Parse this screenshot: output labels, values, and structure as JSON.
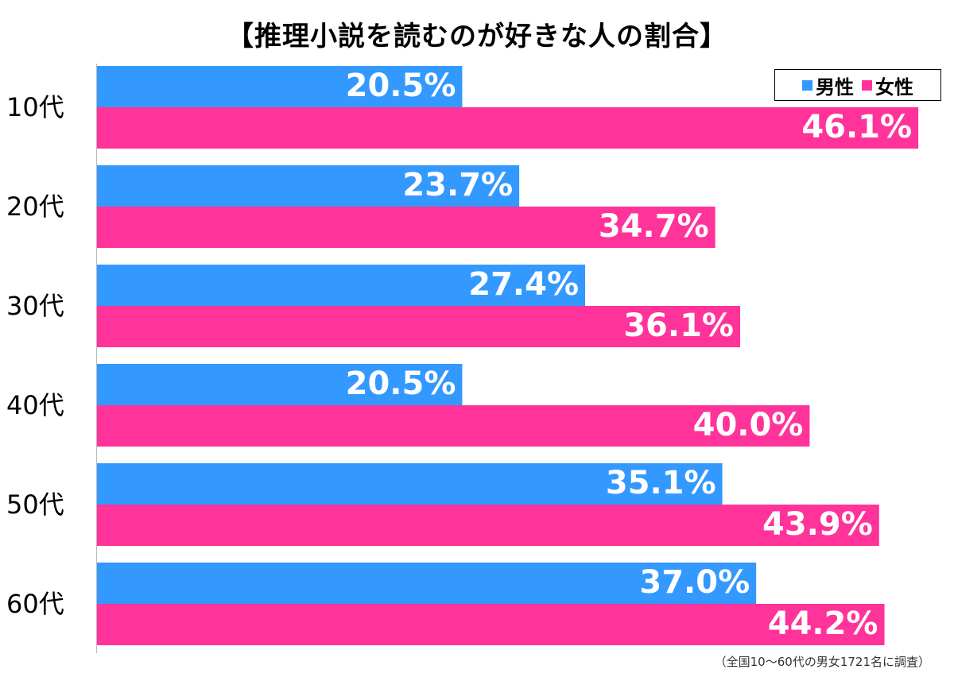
{
  "chart_data": {
    "type": "bar",
    "orientation": "horizontal",
    "title": "【推理小説を読むのが好きな人の割合】",
    "categories": [
      "10代",
      "20代",
      "30代",
      "40代",
      "50代",
      "60代"
    ],
    "series": [
      {
        "name": "男性",
        "color": "#3399ff",
        "values": [
          20.5,
          23.7,
          27.4,
          20.5,
          35.1,
          37.0
        ],
        "labels": [
          "20.5%",
          "23.7%",
          "27.4%",
          "20.5%",
          "35.1%",
          "37.0%"
        ]
      },
      {
        "name": "女性",
        "color": "#ff3399",
        "values": [
          46.1,
          34.7,
          36.1,
          40.0,
          43.9,
          44.2
        ],
        "labels": [
          "46.1%",
          "34.7%",
          "36.1%",
          "40.0%",
          "43.9%",
          "44.2%"
        ]
      }
    ],
    "xlim": [
      0,
      47.3
    ],
    "legend": "top-right",
    "grid": false,
    "note": "（全国10～60代の男女1721名に調査）"
  }
}
